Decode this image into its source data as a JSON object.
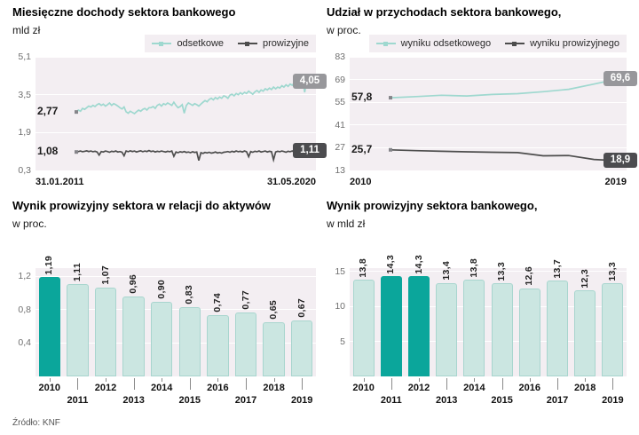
{
  "page": {
    "source": "Źródło: KNF"
  },
  "colors": {
    "teal_line": "#9ed8cf",
    "teal_dark": "#0ba69b",
    "bar_fill": "#cbe6e1",
    "dark_line": "#4d4d4d",
    "badge_gray": "#97979b",
    "badge_dark": "#4c4c4f",
    "plot_bg": "#f3eef2"
  },
  "chart_data": [
    {
      "type": "line",
      "title": "Miesięczne dochody sektora bankowego",
      "subtitle": "mld zł",
      "x_range": [
        "31.01.2011",
        "31.05.2020"
      ],
      "ylim": [
        0.3,
        5.1
      ],
      "y_ticks": [
        5.1,
        3.5,
        1.9,
        0.3
      ],
      "y_tick_labels": [
        "5,1",
        "3,5",
        "1,9",
        "0,3"
      ],
      "legend_position": "top-right",
      "grid": true,
      "series": [
        {
          "name": "odsetkowe",
          "color_key": "teal_line",
          "badge_key": "badge_gray",
          "first_label": "2,77",
          "last_label": "4,05",
          "values": [
            2.77,
            2.85,
            2.8,
            2.92,
            2.88,
            2.95,
            3.02,
            2.98,
            3.05,
            3.0,
            3.08,
            3.12,
            3.05,
            3.1,
            3.02,
            3.08,
            3.15,
            3.05,
            3.12,
            3.08,
            3.02,
            2.95,
            2.9,
            2.98,
            2.78,
            2.72,
            2.8,
            2.75,
            2.7,
            2.78,
            2.85,
            2.8,
            2.88,
            2.92,
            2.85,
            2.95,
            2.95,
            3.0,
            2.92,
            3.05,
            3.1,
            3.02,
            3.12,
            3.08,
            3.15,
            3.1,
            3.05,
            3.18,
            3.05,
            2.95,
            3.0,
            3.08,
            2.72,
            3.05,
            3.15,
            3.1,
            3.05,
            3.12,
            3.08,
            3.02,
            3.1,
            3.18,
            3.25,
            3.2,
            3.3,
            3.35,
            3.28,
            3.38,
            3.32,
            3.4,
            3.35,
            3.45,
            3.42,
            3.35,
            3.48,
            3.52,
            3.45,
            3.55,
            3.5,
            3.58,
            3.52,
            3.6,
            3.55,
            3.65,
            3.58,
            3.52,
            3.62,
            3.68,
            3.6,
            3.7,
            3.65,
            3.75,
            3.7,
            3.78,
            3.72,
            3.82,
            3.75,
            3.82,
            3.78,
            3.88,
            3.82,
            3.92,
            3.85,
            3.95,
            3.9,
            4.0,
            3.95,
            4.05,
            4.1,
            4.18,
            3.6,
            4.12,
            4.05
          ]
        },
        {
          "name": "prowizyjne",
          "color_key": "dark_line",
          "badge_key": "badge_dark",
          "first_label": "1,08",
          "last_label": "1,11",
          "values": [
            1.08,
            1.1,
            1.12,
            1.09,
            1.11,
            1.13,
            1.1,
            1.12,
            1.09,
            1.11,
            1.08,
            0.95,
            1.1,
            1.08,
            1.12,
            1.1,
            1.07,
            1.11,
            1.09,
            1.12,
            1.08,
            1.1,
            1.07,
            0.92,
            1.12,
            1.09,
            1.13,
            1.1,
            1.12,
            1.08,
            1.11,
            1.13,
            1.09,
            1.12,
            1.1,
            1.14,
            1.1,
            1.12,
            1.08,
            1.11,
            1.09,
            1.12,
            1.1,
            1.08,
            1.11,
            1.09,
            1.12,
            0.9,
            1.08,
            1.05,
            1.09,
            1.07,
            1.1,
            1.06,
            1.08,
            1.05,
            1.09,
            1.06,
            1.08,
            0.72,
            1.05,
            1.02,
            1.06,
            1.04,
            1.07,
            1.03,
            1.05,
            1.08,
            1.04,
            1.06,
            1.03,
            1.07,
            1.08,
            1.1,
            1.07,
            1.11,
            1.08,
            1.12,
            1.09,
            1.11,
            1.08,
            1.12,
            1.09,
            0.88,
            1.1,
            1.07,
            1.11,
            1.09,
            1.12,
            1.08,
            1.1,
            1.12,
            1.08,
            1.11,
            1.09,
            0.75,
            1.08,
            1.11,
            1.09,
            1.12,
            1.1,
            1.07,
            1.11,
            1.09,
            1.12,
            1.08,
            1.1,
            1.13,
            1.12,
            1.15,
            1.1,
            1.08,
            1.11
          ]
        }
      ]
    },
    {
      "type": "line",
      "title": "Udział w przychodach sektora bankowego,",
      "subtitle": "w proc.",
      "x_range": [
        "2010",
        "2019"
      ],
      "ylim": [
        13,
        83
      ],
      "y_ticks": [
        83,
        69,
        55,
        41,
        27,
        13
      ],
      "y_tick_labels": [
        "83",
        "69",
        "55",
        "41",
        "27",
        "13"
      ],
      "legend_position": "top-right",
      "grid": true,
      "series": [
        {
          "name": "wyniku odsetkowego",
          "color_key": "teal_line",
          "badge_key": "badge_gray",
          "first_label": "57,8",
          "last_label": "69,6",
          "values": [
            57.8,
            58.5,
            59.3,
            58.9,
            59.8,
            60.3,
            61.5,
            63.0,
            66.2,
            69.6
          ]
        },
        {
          "name": "wyniku prowizyjnego",
          "color_key": "dark_line",
          "badge_key": "badge_dark",
          "first_label": "25,7",
          "last_label": "18,9",
          "values": [
            25.7,
            25.2,
            24.8,
            24.5,
            24.2,
            24.0,
            22.0,
            22.2,
            19.8,
            18.9
          ]
        }
      ]
    },
    {
      "type": "bar",
      "title": "Wynik prowizyjny sektora w relacji do aktywów",
      "subtitle": "w proc.",
      "categories": [
        "2010",
        "2011",
        "2012",
        "2013",
        "2014",
        "2015",
        "2016",
        "2017",
        "2018",
        "2019"
      ],
      "values": [
        1.19,
        1.11,
        1.07,
        0.96,
        0.9,
        0.83,
        0.74,
        0.77,
        0.65,
        0.67
      ],
      "value_labels": [
        "1,19",
        "1,11",
        "1,07",
        "0,96",
        "0,90",
        "0,83",
        "0,74",
        "0,77",
        "0,65",
        "0,67"
      ],
      "highlight_indexes": [
        0
      ],
      "ylim": [
        0,
        1.3
      ],
      "y_ticks": [
        1.2,
        0.8,
        0.4
      ],
      "y_tick_labels": [
        "1,2",
        "0,8",
        "0,4"
      ],
      "grid": true
    },
    {
      "type": "bar",
      "title": "Wynik prowizyjny sektora bankowego,",
      "subtitle": "w mld zł",
      "categories": [
        "2010",
        "2011",
        "2012",
        "2013",
        "2014",
        "2015",
        "2016",
        "2017",
        "2018",
        "2019"
      ],
      "values": [
        13.8,
        14.3,
        14.3,
        13.4,
        13.8,
        13.3,
        12.6,
        13.7,
        12.3,
        13.3
      ],
      "value_labels": [
        "13,8",
        "14,3",
        "14,3",
        "13,4",
        "13,8",
        "13,3",
        "12,6",
        "13,7",
        "12,3",
        "13,3"
      ],
      "highlight_indexes": [
        1,
        2
      ],
      "ylim": [
        0,
        15.5
      ],
      "y_ticks": [
        15,
        10,
        5
      ],
      "y_tick_labels": [
        "15",
        "10",
        "5"
      ],
      "grid": true
    }
  ]
}
